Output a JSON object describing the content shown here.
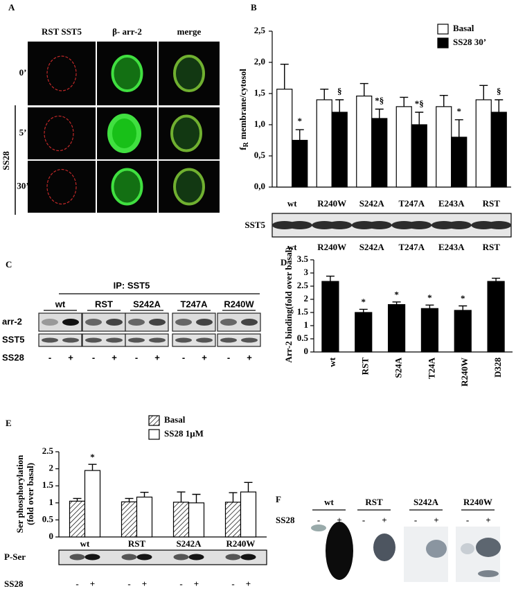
{
  "panel_a": {
    "letter": "A",
    "columns": [
      "RST SST5",
      "β- arr-2",
      "merge"
    ],
    "rows": [
      "0’",
      "5’",
      "30’"
    ],
    "group_label": "SS28"
  },
  "panel_b": {
    "letter": "B",
    "blot_label": "SST5"
  },
  "panel_c": {
    "letter": "C",
    "ip_label": "IP: SST5",
    "lanes": [
      "wt",
      "RST",
      "S242A",
      "T247A",
      "R240W"
    ],
    "rows": [
      "arr-2",
      "SST5"
    ],
    "treatment": "SS28",
    "signs": [
      "-",
      "+"
    ]
  },
  "panel_d": {
    "letter": "D"
  },
  "panel_e": {
    "letter": "E",
    "blot_label": "P-Ser",
    "treatment": "SS28",
    "signs": [
      "-",
      "+"
    ]
  },
  "panel_f": {
    "letter": "F",
    "lanes": [
      "wt",
      "RST",
      "S242A",
      "R240W"
    ],
    "treatment": "SS28",
    "signs": [
      "-",
      "+"
    ]
  },
  "chart_data": [
    {
      "type": "bar",
      "ylabel": "f",
      "ylabel_sub": "R",
      "ylabel_rest": "membrane/cytosol",
      "categories": [
        "wt",
        "R240W",
        "S242A",
        "T247A",
        "E243A",
        "RST"
      ],
      "series": [
        {
          "name": "Basal",
          "color": "#ffffff",
          "values": [
            1.57,
            1.4,
            1.46,
            1.29,
            1.29,
            1.4
          ],
          "errors": [
            0.4,
            0.17,
            0.2,
            0.15,
            0.18,
            0.23
          ]
        },
        {
          "name": "SS28 30’",
          "color": "#000000",
          "values": [
            0.75,
            1.2,
            1.1,
            1.0,
            0.8,
            1.2
          ],
          "errors": [
            0.17,
            0.2,
            0.15,
            0.2,
            0.28,
            0.2
          ],
          "annotations": [
            "*",
            "§",
            "*§",
            "*§",
            "*",
            "§"
          ]
        }
      ],
      "ylim": [
        0,
        2.5
      ],
      "yticks": [
        {
          "value": 0,
          "label": "0,0"
        },
        {
          "value": 0.5,
          "label": "0,5"
        },
        {
          "value": 1,
          "label": "1,0"
        },
        {
          "value": 1.5,
          "label": "1,5"
        },
        {
          "value": 2,
          "label": "2,0"
        },
        {
          "value": 2.5,
          "label": "2,5"
        }
      ],
      "legend": "upper right"
    },
    {
      "type": "bar",
      "ylabel": "Arr-2 binding(fold over basal)",
      "categories": [
        "wt",
        "RST",
        "S24A",
        "T24A",
        "R240W",
        "D328"
      ],
      "values": [
        2.68,
        1.5,
        1.8,
        1.65,
        1.58,
        2.68
      ],
      "errors": [
        0.2,
        0.12,
        0.1,
        0.13,
        0.17,
        0.12
      ],
      "annotations": [
        null,
        "*",
        "*",
        "*",
        "*",
        null
      ],
      "color": "#000000",
      "ylim": [
        0,
        3.5
      ],
      "yticks": [
        0,
        0.5,
        1,
        1.5,
        2,
        2.5,
        3,
        3.5
      ]
    },
    {
      "type": "bar",
      "ylabel": [
        "Ser phosphorylation",
        "(fold over basal)"
      ],
      "categories": [
        "wt",
        "RST",
        "S242A",
        "R240W"
      ],
      "series": [
        {
          "name": "Basal",
          "color": "#ffffff",
          "hatch": true,
          "values": [
            1.05,
            1.03,
            1.02,
            1.02
          ],
          "errors": [
            0.08,
            0.1,
            0.3,
            0.28
          ]
        },
        {
          "name": "SS28 1μM",
          "color": "#ffffff",
          "values": [
            1.95,
            1.17,
            1.0,
            1.32
          ],
          "errors": [
            0.18,
            0.14,
            0.25,
            0.28
          ],
          "annotations": [
            "*",
            null,
            null,
            null
          ]
        }
      ],
      "ylim": [
        0,
        2.5
      ],
      "yticks": [
        0,
        0.5,
        1,
        1.5,
        2,
        2.5
      ],
      "legend": "upper right"
    }
  ]
}
